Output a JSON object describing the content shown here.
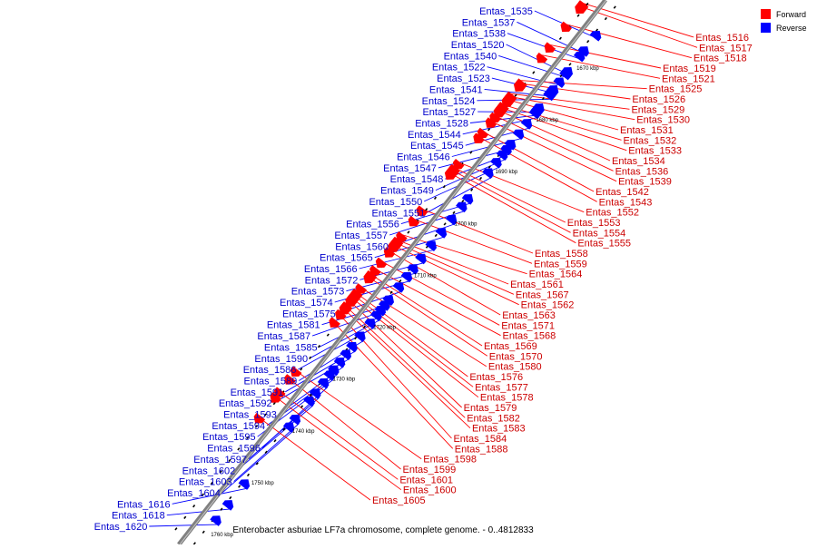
{
  "legend": {
    "forward": {
      "label": "Forward",
      "color": "#ff0000"
    },
    "reverse": {
      "label": "Reverse",
      "color": "#0000ff"
    }
  },
  "caption": "Enterobacter asburiae LF7a chromosome, complete genome. - 0..4812833",
  "diagram": {
    "type": "linear genome map",
    "backbone_color": "#808080",
    "ticks": [
      {
        "kbp": 1670,
        "label": "1670 kbp"
      },
      {
        "kbp": 1680,
        "label": "1680 kbp"
      },
      {
        "kbp": 1690,
        "label": "1690 kbp"
      },
      {
        "kbp": 1700,
        "label": "1700 kbp"
      },
      {
        "kbp": 1710,
        "label": "1710 kbp"
      },
      {
        "kbp": 1720,
        "label": "1720 kbp"
      },
      {
        "kbp": 1730,
        "label": "1730 kbp"
      },
      {
        "kbp": 1740,
        "label": "1740 kbp"
      },
      {
        "kbp": 1750,
        "label": "1750 kbp"
      },
      {
        "kbp": 1760,
        "label": "1760 kbp"
      }
    ],
    "genes": [
      {
        "name": "Entas_1516",
        "strand": "forward",
        "kbp": 1662.4
      },
      {
        "name": "Entas_1517",
        "strand": "forward",
        "kbp": 1663.0
      },
      {
        "name": "Entas_1518",
        "strand": "forward",
        "kbp": 1666.5
      },
      {
        "name": "Entas_1519",
        "strand": "forward",
        "kbp": 1670.5
      },
      {
        "name": "Entas_1520",
        "strand": "reverse",
        "kbp": 1671.5
      },
      {
        "name": "Entas_1521",
        "strand": "forward",
        "kbp": 1672.5
      },
      {
        "name": "Entas_1522",
        "strand": "reverse",
        "kbp": 1673.5
      },
      {
        "name": "Entas_1523",
        "strand": "reverse",
        "kbp": 1675.0
      },
      {
        "name": "Entas_1524",
        "strand": "reverse",
        "kbp": 1676.0
      },
      {
        "name": "Entas_1525",
        "strand": "forward",
        "kbp": 1677.5
      },
      {
        "name": "Entas_1526",
        "strand": "forward",
        "kbp": 1678.0
      },
      {
        "name": "Entas_1527",
        "strand": "reverse",
        "kbp": 1678.5
      },
      {
        "name": "Entas_1528",
        "strand": "reverse",
        "kbp": 1679.0
      },
      {
        "name": "Entas_1529",
        "strand": "forward",
        "kbp": 1680.0
      },
      {
        "name": "Entas_1530",
        "strand": "forward",
        "kbp": 1680.5
      },
      {
        "name": "Entas_1531",
        "strand": "forward",
        "kbp": 1681.0
      },
      {
        "name": "Entas_1532",
        "strand": "forward",
        "kbp": 1682.0
      },
      {
        "name": "Entas_1533",
        "strand": "forward",
        "kbp": 1682.5
      },
      {
        "name": "Entas_1534",
        "strand": "forward",
        "kbp": 1683.0
      },
      {
        "name": "Entas_1535",
        "strand": "reverse",
        "kbp": 1664.5
      },
      {
        "name": "Entas_1536",
        "strand": "forward",
        "kbp": 1684.0
      },
      {
        "name": "Entas_1537",
        "strand": "reverse",
        "kbp": 1667.5
      },
      {
        "name": "Entas_1538",
        "strand": "reverse",
        "kbp": 1668.5
      },
      {
        "name": "Entas_1539",
        "strand": "forward",
        "kbp": 1685.0
      },
      {
        "name": "Entas_1540",
        "strand": "reverse",
        "kbp": 1672.0
      },
      {
        "name": "Entas_1541",
        "strand": "reverse",
        "kbp": 1675.5
      },
      {
        "name": "Entas_1542",
        "strand": "forward",
        "kbp": 1687.0
      },
      {
        "name": "Entas_1543",
        "strand": "forward",
        "kbp": 1688.0
      },
      {
        "name": "Entas_1544",
        "strand": "reverse",
        "kbp": 1679.5
      },
      {
        "name": "Entas_1545",
        "strand": "reverse",
        "kbp": 1681.5
      },
      {
        "name": "Entas_1546",
        "strand": "reverse",
        "kbp": 1683.5
      },
      {
        "name": "Entas_1547",
        "strand": "reverse",
        "kbp": 1685.5
      },
      {
        "name": "Entas_1548",
        "strand": "reverse",
        "kbp": 1686.5
      },
      {
        "name": "Entas_1549",
        "strand": "reverse",
        "kbp": 1687.5
      },
      {
        "name": "Entas_1550",
        "strand": "reverse",
        "kbp": 1689.0
      },
      {
        "name": "Entas_1551",
        "strand": "reverse",
        "kbp": 1691.0
      },
      {
        "name": "Entas_1552",
        "strand": "forward",
        "kbp": 1693.0
      },
      {
        "name": "Entas_1553",
        "strand": "forward",
        "kbp": 1694.0
      },
      {
        "name": "Entas_1554",
        "strand": "forward",
        "kbp": 1694.5
      },
      {
        "name": "Entas_1555",
        "strand": "forward",
        "kbp": 1695.0
      },
      {
        "name": "Entas_1556",
        "strand": "reverse",
        "kbp": 1696.0
      },
      {
        "name": "Entas_1557",
        "strand": "reverse",
        "kbp": 1697.5
      },
      {
        "name": "Entas_1558",
        "strand": "forward",
        "kbp": 1702.0
      },
      {
        "name": "Entas_1559",
        "strand": "forward",
        "kbp": 1704.0
      },
      {
        "name": "Entas_1560",
        "strand": "reverse",
        "kbp": 1700.0
      },
      {
        "name": "Entas_1561",
        "strand": "forward",
        "kbp": 1708.0
      },
      {
        "name": "Entas_1562",
        "strand": "forward",
        "kbp": 1709.0
      },
      {
        "name": "Entas_1563",
        "strand": "forward",
        "kbp": 1710.0
      },
      {
        "name": "Entas_1564",
        "strand": "forward",
        "kbp": 1707.0
      },
      {
        "name": "Entas_1565",
        "strand": "reverse",
        "kbp": 1702.5
      },
      {
        "name": "Entas_1566",
        "strand": "reverse",
        "kbp": 1705.0
      },
      {
        "name": "Entas_1567",
        "strand": "forward",
        "kbp": 1708.5
      },
      {
        "name": "Entas_1568",
        "strand": "forward",
        "kbp": 1713.5
      },
      {
        "name": "Entas_1569",
        "strand": "forward",
        "kbp": 1714.5
      },
      {
        "name": "Entas_1570",
        "strand": "forward",
        "kbp": 1715.0
      },
      {
        "name": "Entas_1571",
        "strand": "forward",
        "kbp": 1712.0
      },
      {
        "name": "Entas_1572",
        "strand": "reverse",
        "kbp": 1707.5
      },
      {
        "name": "Entas_1573",
        "strand": "reverse",
        "kbp": 1709.5
      },
      {
        "name": "Entas_1574",
        "strand": "reverse",
        "kbp": 1711.0
      },
      {
        "name": "Entas_1575",
        "strand": "reverse",
        "kbp": 1713.0
      },
      {
        "name": "Entas_1576",
        "strand": "forward",
        "kbp": 1718.0
      },
      {
        "name": "Entas_1577",
        "strand": "forward",
        "kbp": 1718.5
      },
      {
        "name": "Entas_1578",
        "strand": "forward",
        "kbp": 1719.0
      },
      {
        "name": "Entas_1579",
        "strand": "forward",
        "kbp": 1719.5
      },
      {
        "name": "Entas_1580",
        "strand": "forward",
        "kbp": 1717.0
      },
      {
        "name": "Entas_1581",
        "strand": "reverse",
        "kbp": 1715.5
      },
      {
        "name": "Entas_1582",
        "strand": "forward",
        "kbp": 1720.5
      },
      {
        "name": "Entas_1583",
        "strand": "forward",
        "kbp": 1721.0
      },
      {
        "name": "Entas_1584",
        "strand": "forward",
        "kbp": 1722.0
      },
      {
        "name": "Entas_1585",
        "strand": "reverse",
        "kbp": 1717.5
      },
      {
        "name": "Entas_1586",
        "strand": "reverse",
        "kbp": 1720.0
      },
      {
        "name": "Entas_1587",
        "strand": "reverse",
        "kbp": 1716.5
      },
      {
        "name": "Entas_1588",
        "strand": "forward",
        "kbp": 1723.5
      },
      {
        "name": "Entas_1589",
        "strand": "reverse",
        "kbp": 1722.5
      },
      {
        "name": "Entas_1590",
        "strand": "reverse",
        "kbp": 1718.5
      },
      {
        "name": "Entas_1591",
        "strand": "reverse",
        "kbp": 1724.5
      },
      {
        "name": "Entas_1592",
        "strand": "reverse",
        "kbp": 1726.0
      },
      {
        "name": "Entas_1593",
        "strand": "reverse",
        "kbp": 1727.5
      },
      {
        "name": "Entas_1594",
        "strand": "reverse",
        "kbp": 1729.0
      },
      {
        "name": "Entas_1595",
        "strand": "reverse",
        "kbp": 1730.0
      },
      {
        "name": "Entas_1596",
        "strand": "reverse",
        "kbp": 1731.5
      },
      {
        "name": "Entas_1597",
        "strand": "reverse",
        "kbp": 1733.5
      },
      {
        "name": "Entas_1598",
        "strand": "forward",
        "kbp": 1733.0
      },
      {
        "name": "Entas_1599",
        "strand": "forward",
        "kbp": 1734.5
      },
      {
        "name": "Entas_1600",
        "strand": "forward",
        "kbp": 1738.0
      },
      {
        "name": "Entas_1601",
        "strand": "forward",
        "kbp": 1737.0
      },
      {
        "name": "Entas_1602",
        "strand": "reverse",
        "kbp": 1735.0
      },
      {
        "name": "Entas_1603",
        "strand": "reverse",
        "kbp": 1738.5
      },
      {
        "name": "Entas_1604",
        "strand": "reverse",
        "kbp": 1740.0
      },
      {
        "name": "Entas_1605",
        "strand": "forward",
        "kbp": 1742.0
      },
      {
        "name": "Entas_1616",
        "strand": "reverse",
        "kbp": 1751.0
      },
      {
        "name": "Entas_1618",
        "strand": "reverse",
        "kbp": 1755.0
      },
      {
        "name": "Entas_1620",
        "strand": "reverse",
        "kbp": 1758.0
      }
    ]
  }
}
